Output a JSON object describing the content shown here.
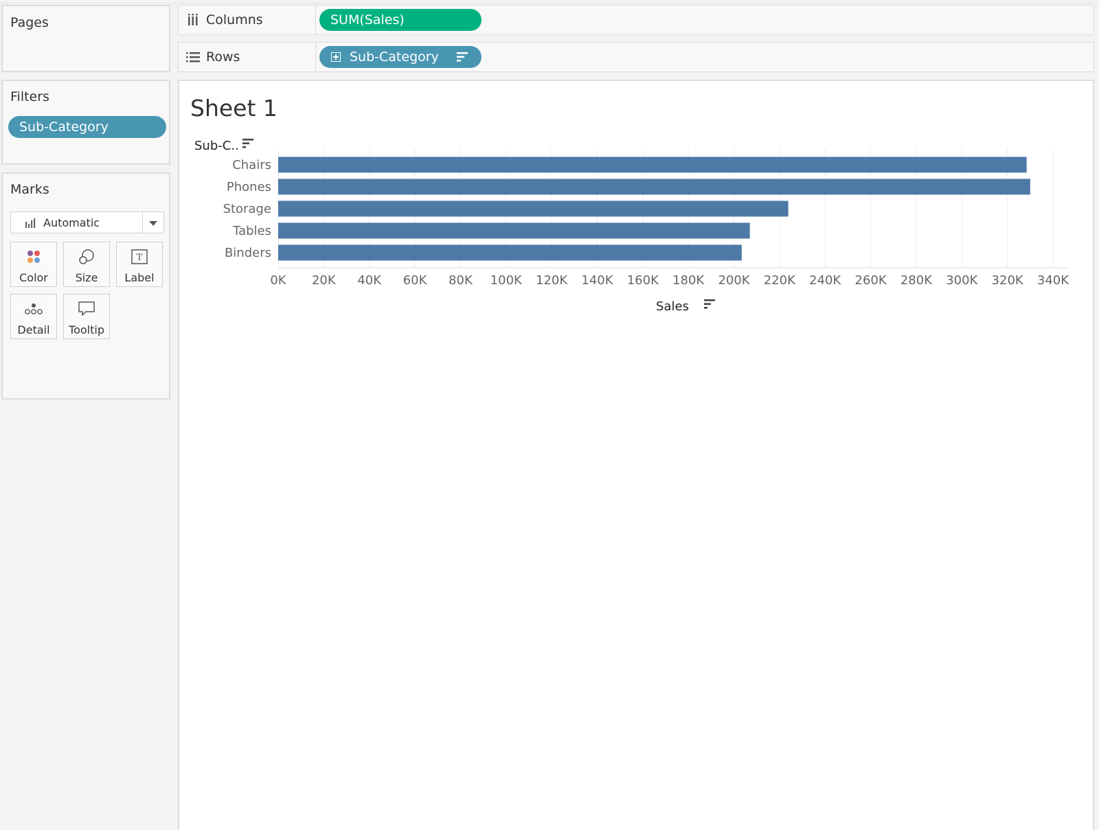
{
  "cards": {
    "pages": {
      "title": "Pages"
    },
    "filters": {
      "title": "Filters",
      "pill": "Sub-Category"
    },
    "marks": {
      "title": "Marks",
      "mark_type": "Automatic",
      "buttons": [
        {
          "label": "Color",
          "icon": "color-icon"
        },
        {
          "label": "Size",
          "icon": "size-icon"
        },
        {
          "label": "Label",
          "icon": "label-icon"
        },
        {
          "label": "Detail",
          "icon": "detail-icon"
        },
        {
          "label": "Tooltip",
          "icon": "tooltip-icon"
        }
      ]
    }
  },
  "shelves": {
    "columns": {
      "label": "Columns",
      "pill": "SUM(Sales)"
    },
    "rows": {
      "label": "Rows",
      "pill": "Sub-Category"
    }
  },
  "sheet": {
    "title": "Sheet 1"
  },
  "colors": {
    "bar": "#4e79a7",
    "dimension_pill": "#4996b2",
    "measure_pill": "#00b180"
  },
  "chart_data": {
    "type": "bar",
    "orientation": "horizontal",
    "row_header": "Sub-C..",
    "categories": [
      "Chairs",
      "Phones",
      "Storage",
      "Tables",
      "Binders"
    ],
    "values": [
      328450,
      330010,
      223840,
      206970,
      203410
    ],
    "xlabel": "Sales",
    "xlim": [
      0,
      340000
    ],
    "x_ticks": [
      "0K",
      "20K",
      "40K",
      "60K",
      "80K",
      "100K",
      "120K",
      "140K",
      "160K",
      "180K",
      "200K",
      "220K",
      "240K",
      "260K",
      "280K",
      "300K",
      "320K",
      "340K"
    ],
    "grid": true
  }
}
